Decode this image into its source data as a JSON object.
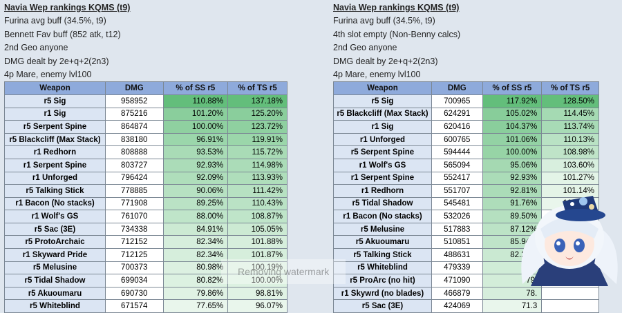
{
  "left": {
    "title": "Navia Wep rankings KQMS (t9)",
    "notes": [
      "Furina avg buff (34.5%, t9)",
      "Bennett Fav buff (852 atk, t12)",
      "2nd Geo anyone",
      "DMG dealt by 2e+q+2(2n3)",
      "4p Mare, enemy lvl100"
    ],
    "headers": [
      "Weapon",
      "DMG",
      "% of SS r5",
      "% of TS r5"
    ],
    "rows": [
      [
        "r5 Sig",
        "958952",
        "110.88%",
        "137.18%"
      ],
      [
        "r1 Sig",
        "875216",
        "101.20%",
        "125.20%"
      ],
      [
        "r5 Serpent Spine",
        "864874",
        "100.00%",
        "123.72%"
      ],
      [
        "r5 Blackcliff (Max Stack)",
        "838180",
        "96.91%",
        "119.91%"
      ],
      [
        "r1 Redhorn",
        "808888",
        "93.53%",
        "115.72%"
      ],
      [
        "r1 Serpent Spine",
        "803727",
        "92.93%",
        "114.98%"
      ],
      [
        "r1 Unforged",
        "796424",
        "92.09%",
        "113.93%"
      ],
      [
        "r5 Talking Stick",
        "778885",
        "90.06%",
        "111.42%"
      ],
      [
        "r1 Bacon (No stacks)",
        "771908",
        "89.25%",
        "110.43%"
      ],
      [
        "r1 Wolf's GS",
        "761070",
        "88.00%",
        "108.87%"
      ],
      [
        "r5 Sac (3E)",
        "734338",
        "84.91%",
        "105.05%"
      ],
      [
        "r5 ProtoArchaic",
        "712152",
        "82.34%",
        "101.88%"
      ],
      [
        "r1 Skyward Pride",
        "712125",
        "82.34%",
        "101.87%"
      ],
      [
        "r5 Melusine",
        "700373",
        "80.98%",
        "100.19%"
      ],
      [
        "r5 Tidal Shadow",
        "699034",
        "80.82%",
        "100.00%"
      ],
      [
        "r5 Akuoumaru",
        "690730",
        "79.86%",
        "98.81%"
      ],
      [
        "r5 Whiteblind",
        "671574",
        "77.65%",
        "96.07%"
      ]
    ]
  },
  "right": {
    "title": "Navia Wep rankings KQMS (t9)",
    "notes": [
      "Furina avg buff (34.5%, t9)",
      "4th slot empty (Non-Benny calcs)",
      "2nd Geo anyone",
      "DMG dealt by 2e+q+2(2n3)",
      "4p Mare, enemy lvl100"
    ],
    "headers": [
      "Weapon",
      "DMG",
      "% of SS r5",
      "% of TS r5"
    ],
    "rows": [
      [
        "r5 Sig",
        "700965",
        "117.92%",
        "128.50%"
      ],
      [
        "r5 Blackcliff (Max Stack)",
        "624291",
        "105.02%",
        "114.45%"
      ],
      [
        "r1 Sig",
        "620416",
        "104.37%",
        "113.74%"
      ],
      [
        "r1 Unforged",
        "600765",
        "101.06%",
        "110.13%"
      ],
      [
        "r5 Serpent Spine",
        "594444",
        "100.00%",
        "108.98%"
      ],
      [
        "r1 Wolf's GS",
        "565094",
        "95.06%",
        "103.60%"
      ],
      [
        "r1 Serpent Spine",
        "552417",
        "92.93%",
        "101.27%"
      ],
      [
        "r1 Redhorn",
        "551707",
        "92.81%",
        "101.14%"
      ],
      [
        "r5 Tidal Shadow",
        "545481",
        "91.76%",
        "100.00%"
      ],
      [
        "r1 Bacon (No stacks)",
        "532026",
        "89.50%",
        ""
      ],
      [
        "r5 Melusine",
        "517883",
        "87.12%",
        ""
      ],
      [
        "r5 Akuoumaru",
        "510851",
        "85.94%",
        ""
      ],
      [
        "r5 Talking Stick",
        "488631",
        "82.20%",
        ""
      ],
      [
        "r5 Whiteblind",
        "479339",
        "80.",
        ""
      ],
      [
        "r5 ProArc (no hit)",
        "471090",
        "79.",
        ""
      ],
      [
        "r1 Skywrd (no blades)",
        "466879",
        "78.",
        ""
      ],
      [
        "r5 Sac (3E)",
        "424069",
        "71.3",
        ""
      ]
    ]
  },
  "watermark": "Removing watermark",
  "colors": {
    "header": "#8eaadb",
    "weapon_cell": "#dbe5f3",
    "green_high": "#63be7b",
    "green_low": "#e9f6ec"
  }
}
